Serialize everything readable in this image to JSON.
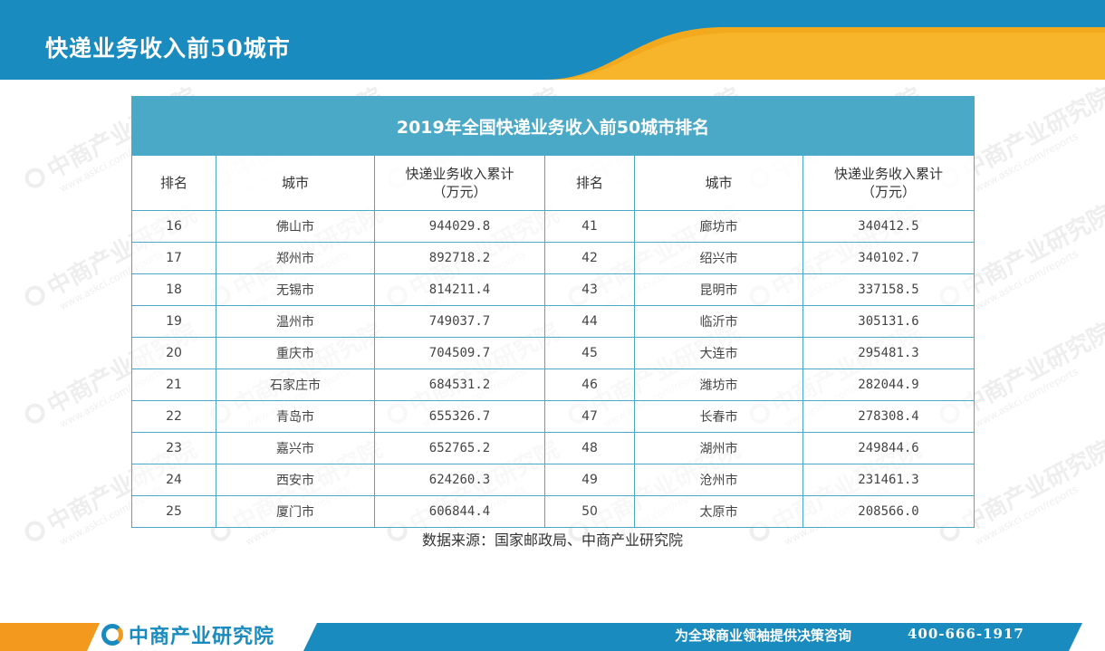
{
  "page": {
    "title": "快递业务收入前50城市"
  },
  "table": {
    "title": "2019年全国快递业务收入前50城市排名",
    "headers": {
      "rank": "排名",
      "city": "城市",
      "income_line1": "快递业务收入累计",
      "income_line2": "（万元）"
    },
    "rows": [
      {
        "rank_a": "16",
        "city_a": "佛山市",
        "income_a": "944029.8",
        "rank_b": "41",
        "city_b": "廊坊市",
        "income_b": "340412.5"
      },
      {
        "rank_a": "17",
        "city_a": "郑州市",
        "income_a": "892718.2",
        "rank_b": "42",
        "city_b": "绍兴市",
        "income_b": "340102.7"
      },
      {
        "rank_a": "18",
        "city_a": "无锡市",
        "income_a": "814211.4",
        "rank_b": "43",
        "city_b": "昆明市",
        "income_b": "337158.5"
      },
      {
        "rank_a": "19",
        "city_a": "温州市",
        "income_a": "749037.7",
        "rank_b": "44",
        "city_b": "临沂市",
        "income_b": "305131.6"
      },
      {
        "rank_a": "20",
        "city_a": "重庆市",
        "income_a": "704509.7",
        "rank_b": "45",
        "city_b": "大连市",
        "income_b": "295481.3"
      },
      {
        "rank_a": "21",
        "city_a": "石家庄市",
        "income_a": "684531.2",
        "rank_b": "46",
        "city_b": "潍坊市",
        "income_b": "282044.9"
      },
      {
        "rank_a": "22",
        "city_a": "青岛市",
        "income_a": "655326.7",
        "rank_b": "47",
        "city_b": "长春市",
        "income_b": "278308.4"
      },
      {
        "rank_a": "23",
        "city_a": "嘉兴市",
        "income_a": "652765.2",
        "rank_b": "48",
        "city_b": "湖州市",
        "income_b": "249844.6"
      },
      {
        "rank_a": "24",
        "city_a": "西安市",
        "income_a": "624260.3",
        "rank_b": "49",
        "city_b": "沧州市",
        "income_b": "231461.3"
      },
      {
        "rank_a": "25",
        "city_a": "厦门市",
        "income_a": "606844.4",
        "rank_b": "50",
        "city_b": "太原市",
        "income_b": "208566.0"
      }
    ]
  },
  "source": "数据来源：国家邮政局、中商产业研究院",
  "watermark": {
    "text": "中商产业研究院",
    "url": "www.askci.com/reports"
  },
  "footer": {
    "logo_text": "中商产业研究院",
    "slogan": "为全球商业领袖提供决策咨询",
    "phone": "400-666-1917"
  },
  "colors": {
    "brand_blue": "#1a8bbf",
    "accent_orange": "#f39a1e",
    "table_header": "#4aa9c7"
  }
}
